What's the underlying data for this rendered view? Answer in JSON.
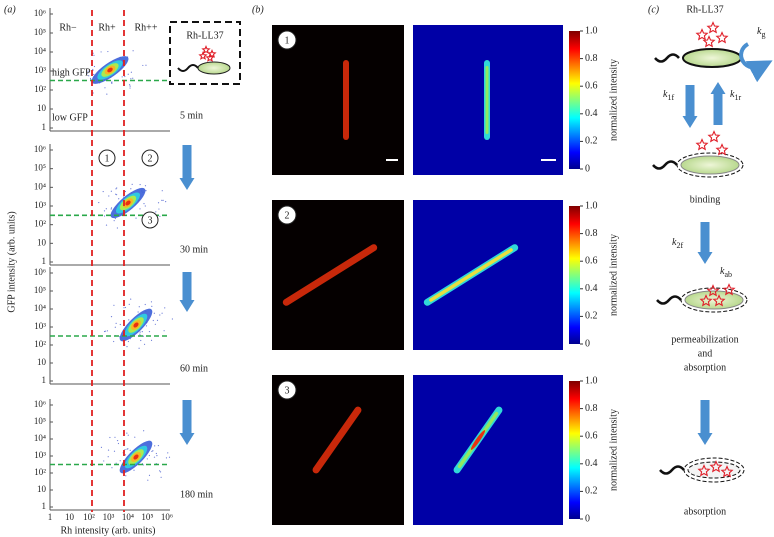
{
  "panel_labels": [
    "(a)",
    "(b)",
    "(c)"
  ],
  "panel_a": {
    "region_labels": [
      "Rh−",
      "Rh+",
      "Rh++"
    ],
    "gfp_labels": [
      "high GFP",
      "low GFP"
    ],
    "inset_label": "Rh-LL37",
    "times": [
      "5 min",
      "30 min",
      "60 min",
      "180 min"
    ],
    "y_ticks": [
      "1",
      "10",
      "10²",
      "10³",
      "10⁴",
      "10⁵",
      "10⁶"
    ],
    "x_ticks": [
      "1",
      "10",
      "10²",
      "10³",
      "10⁴",
      "10⁵",
      "10⁶"
    ],
    "y_axis_label": "GFP intensity (arb. units)",
    "x_axis_label": "Rh intensity (arb. units)",
    "quadrant_markers": [
      "1",
      "2",
      "3"
    ]
  },
  "panel_b": {
    "image_numbers": [
      "1",
      "2",
      "3"
    ],
    "colorbar_ticks": [
      "0",
      "0.2",
      "0.4",
      "0.6",
      "0.8",
      "1.0"
    ],
    "colorbar_label": "normalized intensity"
  },
  "panel_c": {
    "title": "Rh-LL37",
    "rate_symbol": "k",
    "rate_subscripts": [
      "g",
      "1f",
      "1r",
      "2f",
      "ab"
    ],
    "stages": [
      "binding",
      "permeabilization",
      "and",
      "absorption",
      "absorption"
    ]
  }
}
